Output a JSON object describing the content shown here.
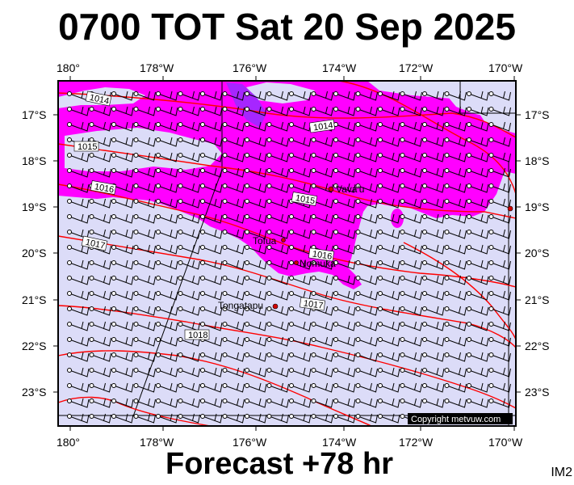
{
  "header": {
    "title": "0700 TOT Sat 20 Sep 2025"
  },
  "footer": {
    "forecast": "Forecast +78 hr",
    "code": "IM2"
  },
  "map": {
    "lon_ticks": [
      "180°",
      "178°W",
      "176°W",
      "174°W",
      "172°W",
      "170°W"
    ],
    "lat_ticks": [
      "17°S",
      "18°S",
      "19°S",
      "20°S",
      "21°S",
      "22°S",
      "23°S"
    ],
    "places": [
      "Vava'u",
      "Tofua",
      "Nomuka",
      "Tongatapu"
    ],
    "isobars": [
      "1014",
      "1014",
      "1015",
      "1015",
      "1016",
      "1016",
      "1017",
      "1017",
      "1018"
    ],
    "copyright": "Copyright metvuw.com",
    "colors": {
      "ocean": "#dcdcf8",
      "rain_light": "#ff00ff",
      "rain_heavy": "#9030ff",
      "isobar": "#ff0000"
    }
  }
}
